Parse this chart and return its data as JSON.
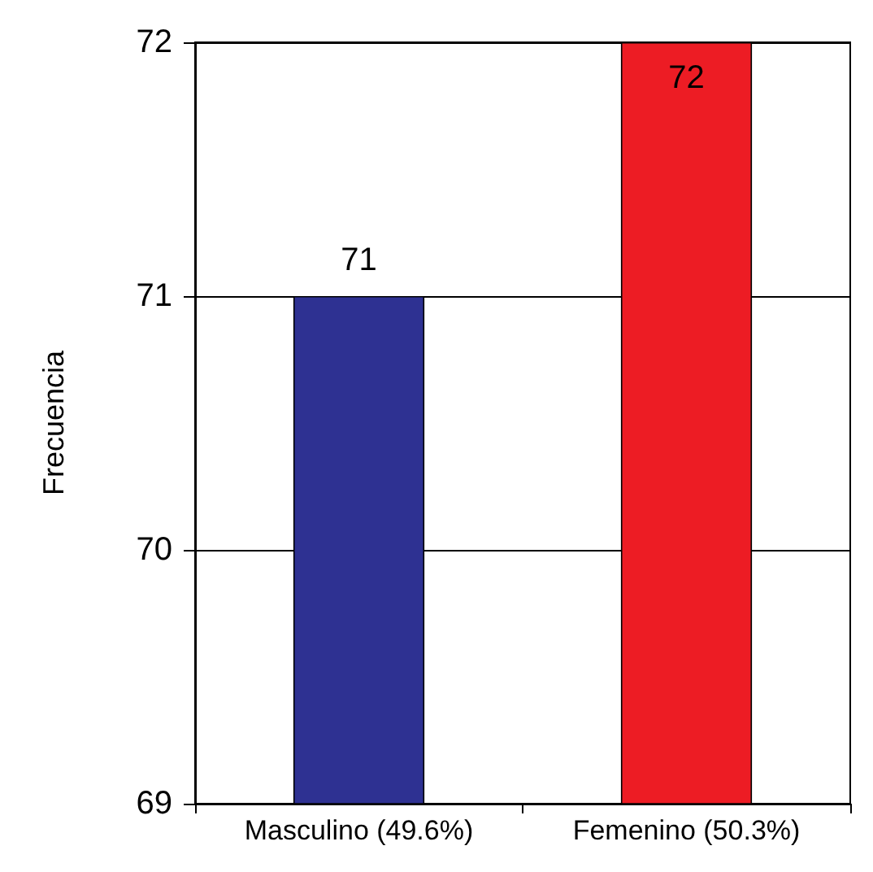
{
  "chart_data": {
    "type": "bar",
    "ylabel": "Frecuencia",
    "categories": [
      "Masculino (49.6%)",
      "Femenino (50.3%)"
    ],
    "values": [
      71,
      72
    ],
    "colors": [
      "#2e3192",
      "#ed1c24"
    ],
    "ylim": [
      69,
      72
    ],
    "yticks": [
      69,
      70,
      71,
      72
    ],
    "grid": "y",
    "data_labels": true
  }
}
